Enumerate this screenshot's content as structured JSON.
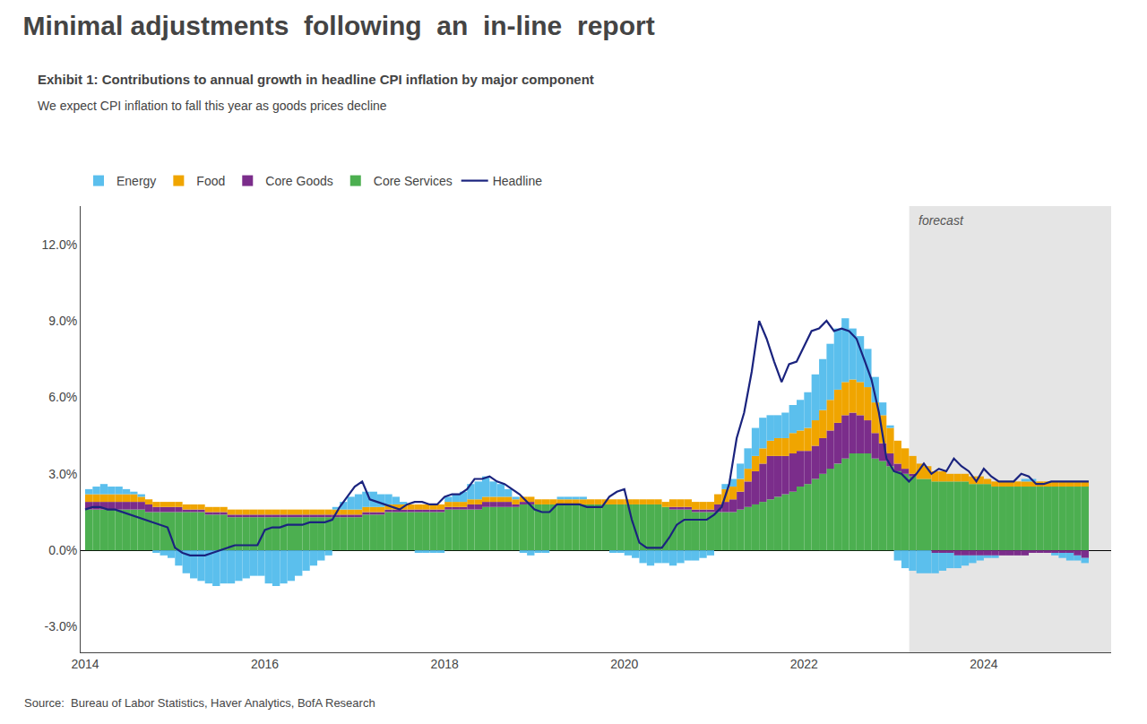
{
  "chart_data": {
    "type": "area",
    "stacked": true,
    "title": "Minimal adjustments  following  an  in-line  report",
    "subtitle": "We expect CPI inflation to fall this year as goods prices decline",
    "annotations": [
      "Exhibit 1: Contributions to annual growth in headline CPI inflation by major component",
      "Source:  Bureau of Labor Statistics, Haver Analytics, BofA Research"
    ],
    "shaded_region": {
      "from": 2023.17,
      "to": 2025.417,
      "label": "forecast",
      "color": "#E5E5E5"
    },
    "legend": "upper left",
    "grid": false,
    "xlim": [
      2013.95,
      2025.417
    ],
    "xticks": [
      2014,
      2016,
      2018,
      2020,
      2022,
      2024
    ],
    "ylim": [
      -0.04,
      0.135
    ],
    "yticks": [
      {
        "value": -0.03,
        "label": "-3.0%"
      },
      {
        "value": 0.0,
        "label": "0.0%"
      },
      {
        "value": 0.03,
        "label": "3.0%"
      },
      {
        "value": 0.06,
        "label": "6.0%"
      },
      {
        "value": 0.09,
        "label": "9.0%"
      },
      {
        "value": 0.12,
        "label": "12.0%"
      }
    ],
    "x": [
      2014.0,
      2014.083,
      2014.167,
      2014.25,
      2014.333,
      2014.417,
      2014.5,
      2014.583,
      2014.667,
      2014.75,
      2014.833,
      2014.917,
      2015.0,
      2015.083,
      2015.167,
      2015.25,
      2015.333,
      2015.417,
      2015.5,
      2015.583,
      2015.667,
      2015.75,
      2015.833,
      2015.917,
      2016.0,
      2016.083,
      2016.167,
      2016.25,
      2016.333,
      2016.417,
      2016.5,
      2016.583,
      2016.667,
      2016.75,
      2016.833,
      2016.917,
      2017.0,
      2017.083,
      2017.167,
      2017.25,
      2017.333,
      2017.417,
      2017.5,
      2017.583,
      2017.667,
      2017.75,
      2017.833,
      2017.917,
      2018.0,
      2018.083,
      2018.167,
      2018.25,
      2018.333,
      2018.417,
      2018.5,
      2018.583,
      2018.667,
      2018.75,
      2018.833,
      2018.917,
      2019.0,
      2019.083,
      2019.167,
      2019.25,
      2019.333,
      2019.417,
      2019.5,
      2019.583,
      2019.667,
      2019.75,
      2019.833,
      2019.917,
      2020.0,
      2020.083,
      2020.167,
      2020.25,
      2020.333,
      2020.417,
      2020.5,
      2020.583,
      2020.667,
      2020.75,
      2020.833,
      2020.917,
      2021.0,
      2021.083,
      2021.167,
      2021.25,
      2021.333,
      2021.417,
      2021.5,
      2021.583,
      2021.667,
      2021.75,
      2021.833,
      2021.917,
      2022.0,
      2022.083,
      2022.167,
      2022.25,
      2022.333,
      2022.417,
      2022.5,
      2022.583,
      2022.667,
      2022.75,
      2022.833,
      2022.917,
      2023.0,
      2023.083,
      2023.167,
      2023.25,
      2023.333,
      2023.417,
      2023.5,
      2023.583,
      2023.667,
      2023.75,
      2023.833,
      2023.917,
      2024.0,
      2024.083,
      2024.167,
      2024.25,
      2024.333,
      2024.417,
      2024.5,
      2024.583,
      2024.667,
      2024.75,
      2024.833,
      2024.917,
      2025.0,
      2025.083,
      2025.167
    ],
    "series": [
      {
        "name": "Energy",
        "type": "area",
        "color": "#5BBFED",
        "values": [
          0.002,
          0.003,
          0.004,
          0.003,
          0.003,
          0.002,
          0.001,
          0.001,
          0.0,
          -0.001,
          -0.002,
          -0.003,
          -0.006,
          -0.009,
          -0.011,
          -0.012,
          -0.013,
          -0.014,
          -0.013,
          -0.013,
          -0.012,
          -0.011,
          -0.01,
          -0.01,
          -0.013,
          -0.014,
          -0.013,
          -0.012,
          -0.01,
          -0.008,
          -0.006,
          -0.004,
          -0.002,
          0.001,
          0.003,
          0.005,
          0.006,
          0.006,
          0.006,
          0.005,
          0.004,
          0.003,
          0.001,
          0.0,
          -0.001,
          -0.001,
          -0.001,
          -0.001,
          0.002,
          0.003,
          0.004,
          0.006,
          0.007,
          0.008,
          0.006,
          0.005,
          0.003,
          0.001,
          -0.001,
          -0.002,
          -0.001,
          -0.001,
          0.0,
          0.001,
          0.001,
          0.001,
          0.001,
          0.0,
          0.0,
          0.0,
          -0.001,
          -0.001,
          -0.002,
          -0.003,
          -0.005,
          -0.006,
          -0.005,
          -0.005,
          -0.006,
          -0.005,
          -0.004,
          -0.004,
          -0.003,
          -0.002,
          0.0,
          0.002,
          0.003,
          0.006,
          0.008,
          0.011,
          0.012,
          0.01,
          0.009,
          0.01,
          0.011,
          0.012,
          0.014,
          0.018,
          0.02,
          0.022,
          0.024,
          0.025,
          0.02,
          0.018,
          0.015,
          0.01,
          0.005,
          0.001,
          -0.004,
          -0.007,
          -0.008,
          -0.009,
          -0.009,
          -0.008,
          -0.007,
          -0.006,
          -0.005,
          -0.004,
          -0.003,
          -0.002,
          -0.001,
          -0.001,
          0.0,
          0.0,
          0.0,
          0.001,
          0.001,
          0.0,
          0.0,
          -0.001,
          -0.002,
          -0.003,
          -0.002,
          -0.002,
          -0.001
        ]
      },
      {
        "name": "Food",
        "type": "area",
        "color": "#F0A500",
        "values": [
          0.003,
          0.003,
          0.003,
          0.003,
          0.003,
          0.003,
          0.003,
          0.002,
          0.002,
          0.002,
          0.002,
          0.002,
          0.002,
          0.002,
          0.002,
          0.002,
          0.002,
          0.002,
          0.002,
          0.002,
          0.002,
          0.002,
          0.002,
          0.002,
          0.002,
          0.002,
          0.002,
          0.002,
          0.002,
          0.002,
          0.002,
          0.002,
          0.002,
          0.002,
          0.002,
          0.002,
          0.002,
          0.002,
          0.002,
          0.002,
          0.002,
          0.002,
          0.002,
          0.002,
          0.002,
          0.002,
          0.002,
          0.002,
          0.002,
          0.002,
          0.002,
          0.002,
          0.002,
          0.002,
          0.002,
          0.002,
          0.002,
          0.002,
          0.002,
          0.002,
          0.002,
          0.002,
          0.002,
          0.002,
          0.002,
          0.002,
          0.002,
          0.002,
          0.002,
          0.002,
          0.002,
          0.002,
          0.002,
          0.002,
          0.002,
          0.002,
          0.002,
          0.002,
          0.003,
          0.003,
          0.003,
          0.003,
          0.003,
          0.003,
          0.004,
          0.005,
          0.005,
          0.005,
          0.005,
          0.006,
          0.006,
          0.006,
          0.007,
          0.007,
          0.008,
          0.008,
          0.009,
          0.01,
          0.011,
          0.012,
          0.013,
          0.013,
          0.013,
          0.013,
          0.013,
          0.012,
          0.011,
          0.01,
          0.009,
          0.008,
          0.007,
          0.006,
          0.005,
          0.004,
          0.004,
          0.003,
          0.003,
          0.003,
          0.003,
          0.003,
          0.002,
          0.002,
          0.002,
          0.002,
          0.002,
          0.002,
          0.002,
          0.002,
          0.002,
          0.002,
          0.002,
          0.002,
          0.002,
          0.002,
          0.002
        ]
      },
      {
        "name": "Core Goods",
        "type": "area",
        "color": "#7B2D8B",
        "values": [
          0.003,
          0.003,
          0.003,
          0.003,
          0.003,
          0.003,
          0.003,
          0.003,
          0.003,
          0.002,
          0.002,
          0.002,
          0.002,
          0.001,
          0.001,
          0.001,
          0.001,
          0.001,
          0.001,
          0.001,
          0.001,
          0.001,
          0.001,
          0.001,
          0.001,
          0.001,
          0.001,
          0.001,
          0.001,
          0.001,
          0.001,
          0.001,
          0.001,
          0.001,
          0.001,
          0.001,
          0.001,
          0.001,
          0.001,
          0.001,
          0.001,
          0.001,
          0.001,
          0.001,
          0.001,
          0.001,
          0.001,
          0.001,
          0.001,
          0.001,
          0.001,
          0.002,
          0.002,
          0.002,
          0.002,
          0.002,
          0.002,
          0.001,
          0.001,
          0.001,
          0.0,
          0.0,
          0.0,
          0.0,
          0.0,
          0.0,
          0.0,
          0.0,
          0.0,
          0.0,
          0.0,
          0.0,
          0.0,
          0.0,
          0.0,
          0.0,
          0.0,
          0.0,
          0.001,
          0.001,
          0.001,
          0.001,
          0.001,
          0.001,
          0.003,
          0.004,
          0.005,
          0.007,
          0.01,
          0.013,
          0.015,
          0.017,
          0.016,
          0.015,
          0.015,
          0.014,
          0.013,
          0.013,
          0.014,
          0.015,
          0.016,
          0.017,
          0.016,
          0.015,
          0.013,
          0.01,
          0.007,
          0.005,
          0.003,
          0.002,
          0.001,
          0.0,
          0.0,
          -0.001,
          -0.001,
          -0.001,
          -0.002,
          -0.002,
          -0.002,
          -0.002,
          -0.002,
          -0.002,
          -0.002,
          -0.002,
          -0.002,
          -0.002,
          -0.001,
          -0.001,
          -0.001,
          -0.001,
          -0.001,
          -0.001,
          -0.002,
          -0.003,
          -0.003
        ]
      },
      {
        "name": "Core Services",
        "type": "area",
        "color": "#4CAF50",
        "values": [
          0.016,
          0.016,
          0.016,
          0.016,
          0.016,
          0.016,
          0.016,
          0.016,
          0.015,
          0.015,
          0.015,
          0.015,
          0.015,
          0.015,
          0.015,
          0.015,
          0.014,
          0.014,
          0.014,
          0.013,
          0.013,
          0.013,
          0.013,
          0.013,
          0.013,
          0.013,
          0.013,
          0.013,
          0.013,
          0.013,
          0.013,
          0.013,
          0.013,
          0.013,
          0.013,
          0.013,
          0.013,
          0.014,
          0.014,
          0.014,
          0.015,
          0.015,
          0.015,
          0.015,
          0.015,
          0.015,
          0.015,
          0.015,
          0.016,
          0.016,
          0.016,
          0.016,
          0.016,
          0.017,
          0.017,
          0.017,
          0.017,
          0.017,
          0.018,
          0.018,
          0.018,
          0.018,
          0.018,
          0.018,
          0.018,
          0.018,
          0.018,
          0.018,
          0.018,
          0.018,
          0.018,
          0.018,
          0.018,
          0.018,
          0.018,
          0.018,
          0.018,
          0.017,
          0.016,
          0.016,
          0.016,
          0.015,
          0.015,
          0.015,
          0.015,
          0.015,
          0.015,
          0.016,
          0.017,
          0.018,
          0.019,
          0.02,
          0.021,
          0.022,
          0.023,
          0.025,
          0.026,
          0.028,
          0.03,
          0.032,
          0.034,
          0.036,
          0.038,
          0.038,
          0.038,
          0.036,
          0.035,
          0.033,
          0.031,
          0.03,
          0.029,
          0.028,
          0.028,
          0.027,
          0.027,
          0.027,
          0.027,
          0.027,
          0.026,
          0.026,
          0.026,
          0.025,
          0.025,
          0.025,
          0.025,
          0.025,
          0.025,
          0.025,
          0.025,
          0.025,
          0.025,
          0.025,
          0.025,
          0.025,
          0.025
        ]
      },
      {
        "name": "Headline",
        "type": "line",
        "color": "#1A237E",
        "values": [
          0.016,
          0.017,
          0.017,
          0.016,
          0.016,
          0.015,
          0.014,
          0.013,
          0.012,
          0.011,
          0.01,
          0.009,
          0.001,
          -0.001,
          -0.002,
          -0.002,
          -0.002,
          -0.001,
          0.0,
          0.001,
          0.002,
          0.002,
          0.002,
          0.002,
          0.008,
          0.009,
          0.009,
          0.01,
          0.01,
          0.01,
          0.011,
          0.011,
          0.011,
          0.012,
          0.017,
          0.021,
          0.025,
          0.027,
          0.02,
          0.019,
          0.018,
          0.017,
          0.016,
          0.018,
          0.019,
          0.019,
          0.018,
          0.018,
          0.021,
          0.022,
          0.022,
          0.024,
          0.028,
          0.028,
          0.029,
          0.027,
          0.026,
          0.024,
          0.022,
          0.019,
          0.016,
          0.015,
          0.015,
          0.018,
          0.018,
          0.018,
          0.018,
          0.017,
          0.017,
          0.017,
          0.021,
          0.023,
          0.024,
          0.012,
          0.003,
          0.001,
          0.001,
          0.001,
          0.005,
          0.01,
          0.012,
          0.012,
          0.012,
          0.012,
          0.014,
          0.017,
          0.026,
          0.044,
          0.054,
          0.07,
          0.09,
          0.083,
          0.074,
          0.066,
          0.073,
          0.074,
          0.08,
          0.086,
          0.087,
          0.09,
          0.086,
          0.087,
          0.086,
          0.083,
          0.075,
          0.067,
          0.054,
          0.036,
          0.031,
          0.03,
          0.027,
          0.03,
          0.034,
          0.03,
          0.032,
          0.031,
          0.036,
          0.033,
          0.031,
          0.027,
          0.032,
          0.029,
          0.027,
          0.027,
          0.027,
          0.03,
          0.029,
          0.026,
          0.026,
          0.027,
          0.027,
          0.027,
          0.027,
          0.027,
          0.027
        ]
      }
    ]
  }
}
